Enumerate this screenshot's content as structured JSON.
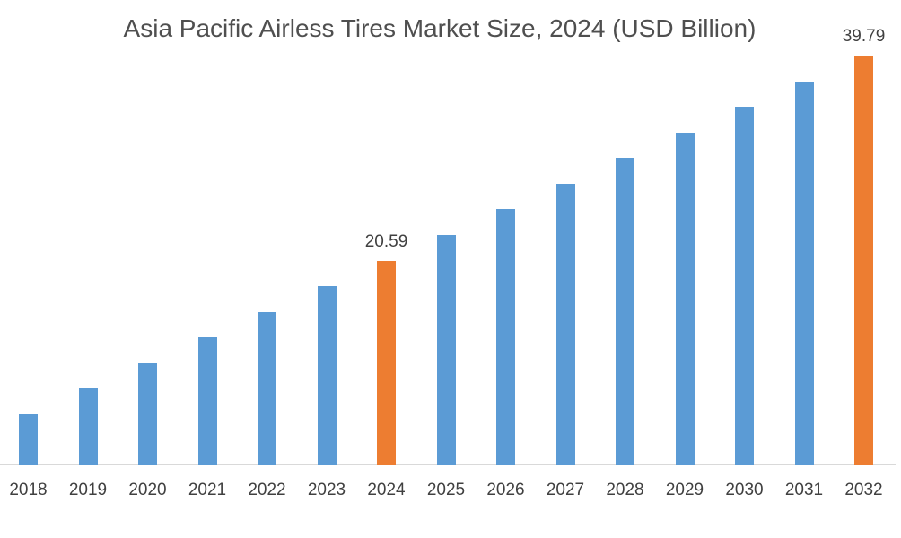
{
  "chart_data": {
    "type": "bar",
    "title": "Asia Pacific Airless Tires Market Size, 2024 (USD Billion)",
    "unit": "USD Billion",
    "categories": [
      "2018",
      "2019",
      "2020",
      "2021",
      "2022",
      "2023",
      "2024",
      "2025",
      "2026",
      "2027",
      "2028",
      "2029",
      "2030",
      "2031",
      "2032"
    ],
    "values": [
      6.19,
      8.59,
      10.99,
      13.39,
      15.79,
      18.19,
      20.59,
      22.99,
      25.39,
      27.79,
      30.19,
      32.59,
      34.99,
      37.39,
      39.79
    ],
    "highlighted_categories": [
      "2024",
      "2032"
    ],
    "data_labels": {
      "2024": "20.59",
      "2032": "39.79"
    },
    "xlabel": "",
    "ylabel": "",
    "ylim": [
      1.4,
      45.0
    ],
    "grid": false,
    "legend": "none",
    "colors": {
      "bar": "#5B9BD5",
      "highlight": "#ED7D31",
      "title_text": "#4F4F4F",
      "tick_text": "#404040",
      "label_text": "#404040",
      "axis_line": "#D9D9D9",
      "background": "#FFFFFF"
    }
  }
}
